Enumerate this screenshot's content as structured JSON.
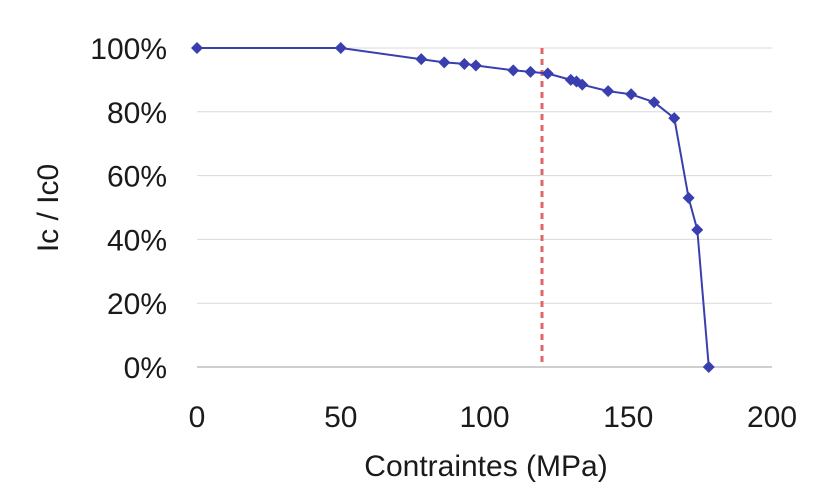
{
  "chart_data": {
    "type": "scatter",
    "xlabel": "Contraintes (MPa)",
    "ylabel": "Ic / Ic0",
    "xlim": [
      0,
      200
    ],
    "ylim": [
      0,
      100
    ],
    "x_ticks": [
      0,
      50,
      100,
      150,
      200
    ],
    "x_tick_labels": [
      "0",
      "50",
      "100",
      "150",
      "200"
    ],
    "y_ticks": [
      0,
      20,
      40,
      60,
      80,
      100
    ],
    "y_tick_labels": [
      "0%",
      "20%",
      "40%",
      "60%",
      "80%",
      "100%"
    ],
    "grid": true,
    "legend": "none",
    "series": [
      {
        "color": "#3a3fb0",
        "marker": "diamond",
        "line": "solid",
        "x": [
          0,
          50,
          78,
          86,
          93,
          97,
          110,
          116,
          122,
          130,
          132,
          134,
          143,
          151,
          159,
          166,
          171,
          174,
          178
        ],
        "y": [
          100,
          100,
          96.5,
          95.5,
          95,
          94.5,
          93,
          92.5,
          92,
          90,
          89.5,
          88.5,
          86.5,
          85.5,
          83,
          78,
          53,
          43,
          0
        ]
      }
    ],
    "reference_lines": [
      {
        "orientation": "vertical",
        "x": 120,
        "color": "#e06666",
        "style": "dashed"
      }
    ]
  }
}
